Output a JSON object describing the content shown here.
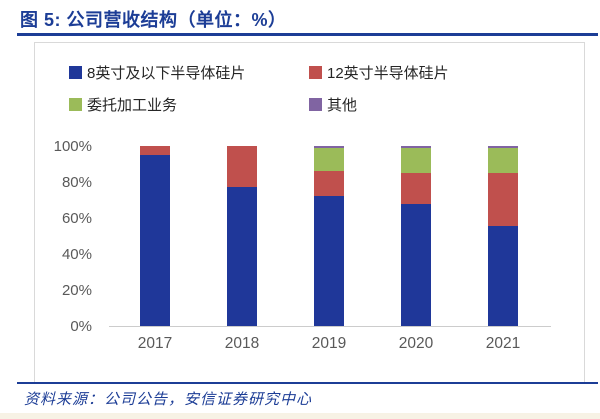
{
  "figure": {
    "title": "图 5: 公司营收结构（单位：%）",
    "source": "资料来源：公司公告，安信证券研究中心",
    "accent_color": "#1c3d96"
  },
  "chart_data": {
    "type": "bar",
    "subtype": "stacked-100-percent",
    "title": "公司营收结构（单位：%）",
    "categories": [
      "2017",
      "2018",
      "2019",
      "2020",
      "2021"
    ],
    "series": [
      {
        "name": "8英寸及以下半导体硅片",
        "color": "#1f3799",
        "values": [
          95,
          77,
          72,
          68,
          55.5
        ]
      },
      {
        "name": "12英寸半导体硅片",
        "color": "#c0504d",
        "values": [
          5,
          23,
          14,
          17,
          29.5
        ]
      },
      {
        "name": "委托加工业务",
        "color": "#9bbb59",
        "values": [
          0,
          0,
          13,
          14,
          14
        ]
      },
      {
        "name": "其他",
        "color": "#8064a2",
        "values": [
          0,
          0,
          1,
          1,
          1
        ]
      }
    ],
    "xlabel": "",
    "ylabel": "",
    "ylim": [
      0,
      100
    ],
    "yticks": [
      "0%",
      "20%",
      "40%",
      "60%",
      "80%",
      "100%"
    ],
    "grid": false,
    "legend_position": "top",
    "axis_label_color": "#595959"
  }
}
